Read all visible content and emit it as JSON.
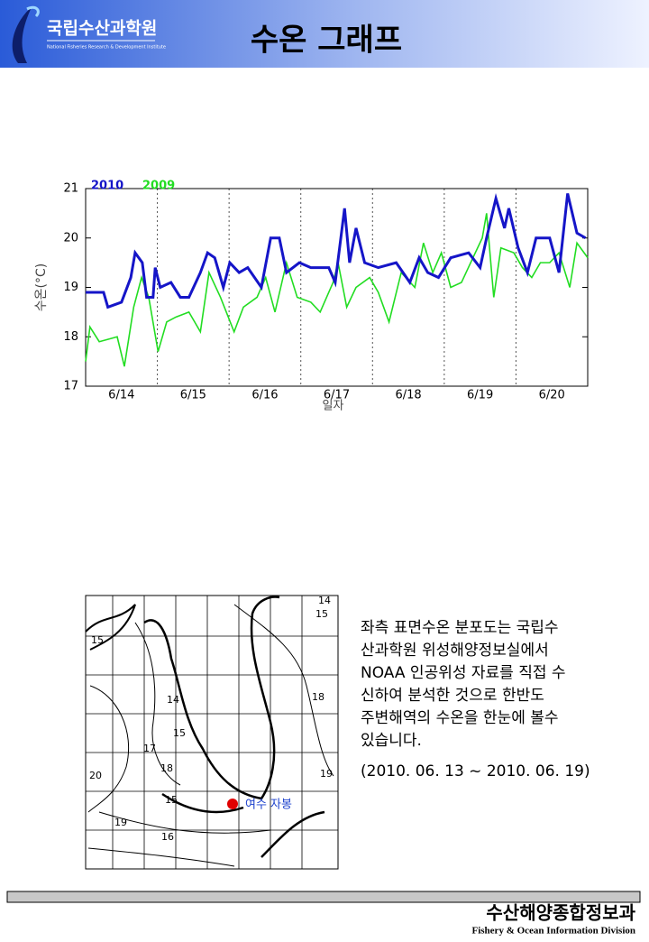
{
  "header": {
    "logo_text": "국립수산과학원",
    "logo_subtitle": "National Fisheries Research & Development Institute",
    "title": "수온 그래프"
  },
  "chart_data": {
    "type": "line",
    "xlabel": "일자",
    "ylabel": "수온(°C)",
    "xlim": [
      0,
      7
    ],
    "ylim": [
      17,
      21
    ],
    "yticks": [
      17,
      18,
      19,
      20,
      21
    ],
    "xticks": [
      {
        "value": 0.5,
        "label": "6/14"
      },
      {
        "value": 1.5,
        "label": "6/15"
      },
      {
        "value": 2.5,
        "label": "6/16"
      },
      {
        "value": 3.5,
        "label": "6/17"
      },
      {
        "value": 4.5,
        "label": "6/18"
      },
      {
        "value": 5.5,
        "label": "6/19"
      },
      {
        "value": 6.5,
        "label": "6/20"
      }
    ],
    "grid": true,
    "series": [
      {
        "name": "2010",
        "color": "#1515c8",
        "x": [
          0,
          0.25,
          0.31,
          0.5,
          0.63,
          0.69,
          0.79,
          0.85,
          0.94,
          0.97,
          1.04,
          1.19,
          1.32,
          1.44,
          1.6,
          1.7,
          1.8,
          1.92,
          2.01,
          2.14,
          2.26,
          2.45,
          2.58,
          2.7,
          2.8,
          2.98,
          3.14,
          3.39,
          3.48,
          3.61,
          3.68,
          3.77,
          3.89,
          4.08,
          4.33,
          4.52,
          4.65,
          4.77,
          4.92,
          5.09,
          5.34,
          5.5,
          5.59,
          5.72,
          5.84,
          5.9,
          6.03,
          6.16,
          6.28,
          6.47,
          6.6,
          6.72,
          6.85,
          6.97
        ],
        "values": [
          18.9,
          18.9,
          18.6,
          18.7,
          19.2,
          19.7,
          19.5,
          18.8,
          18.8,
          19.4,
          19.0,
          19.1,
          18.8,
          18.8,
          19.3,
          19.7,
          19.6,
          19.0,
          19.5,
          19.3,
          19.4,
          19.0,
          20.0,
          20.0,
          19.3,
          19.5,
          19.4,
          19.4,
          19.1,
          20.6,
          19.5,
          20.2,
          19.5,
          19.4,
          19.5,
          19.1,
          19.6,
          19.3,
          19.2,
          19.6,
          19.7,
          19.4,
          20.0,
          20.8,
          20.2,
          20.6,
          19.8,
          19.3,
          20.0,
          20.0,
          19.3,
          20.9,
          20.1,
          20.0
        ]
      },
      {
        "name": "2009",
        "color": "#22dd22",
        "x": [
          0,
          0.06,
          0.19,
          0.44,
          0.54,
          0.67,
          0.78,
          0.88,
          1.01,
          1.13,
          1.26,
          1.44,
          1.6,
          1.72,
          1.88,
          2.07,
          2.2,
          2.39,
          2.51,
          2.64,
          2.8,
          2.95,
          3.14,
          3.27,
          3.45,
          3.52,
          3.64,
          3.77,
          3.96,
          4.08,
          4.23,
          4.4,
          4.59,
          4.71,
          4.84,
          4.96,
          5.09,
          5.24,
          5.4,
          5.53,
          5.59,
          5.69,
          5.79,
          5.97,
          6.09,
          6.22,
          6.34,
          6.47,
          6.6,
          6.75,
          6.85,
          7.0
        ],
        "values": [
          17.5,
          18.2,
          17.9,
          18.0,
          17.4,
          18.6,
          19.2,
          18.8,
          17.7,
          18.3,
          18.4,
          18.5,
          18.1,
          19.3,
          18.8,
          18.1,
          18.6,
          18.8,
          19.2,
          18.5,
          19.5,
          18.8,
          18.7,
          18.5,
          19.1,
          19.5,
          18.6,
          19.0,
          19.2,
          18.9,
          18.3,
          19.3,
          19.0,
          19.9,
          19.3,
          19.7,
          19.0,
          19.1,
          19.6,
          20.0,
          20.5,
          18.8,
          19.8,
          19.7,
          19.4,
          19.2,
          19.5,
          19.5,
          19.7,
          19.0,
          19.9,
          19.6
        ]
      }
    ]
  },
  "map": {
    "contour_labels": [
      "15",
      "14",
      "15",
      "18",
      "17",
      "14",
      "15",
      "18",
      "19",
      "20",
      "15",
      "19",
      "16"
    ],
    "station": "여수 자봉"
  },
  "description": {
    "lines": [
      "좌측 표면수온 분포도는 국립수",
      "산과학원 위성해양정보실에서",
      "NOAA 인공위성 자료를 직접 수",
      "신하여 분석한 것으로  한반도",
      "주변해역의 수온을 한눈에 볼수",
      "있습니다."
    ],
    "period": "(2010. 06. 13 ~ 2010. 06. 19)"
  },
  "footer": {
    "division_ko": "수산해양종합정보과",
    "division_en": "Fishery & Ocean Information Division"
  }
}
